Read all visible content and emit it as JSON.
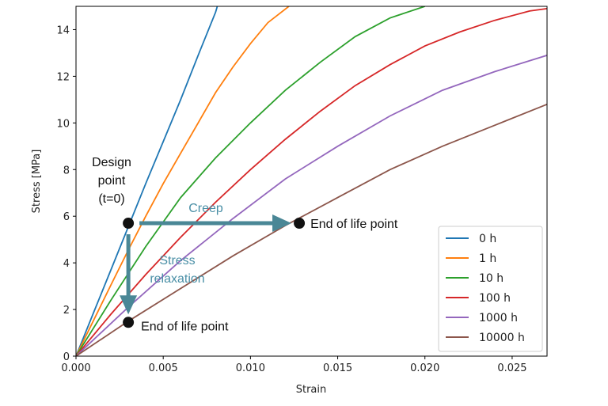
{
  "chart_data": {
    "type": "line",
    "xlabel": "Strain",
    "ylabel": "Stress [MPa]",
    "xlim": [
      0,
      0.027
    ],
    "ylim": [
      0,
      15
    ],
    "x_ticks": [
      "0.000",
      "0.005",
      "0.010",
      "0.015",
      "0.020",
      "0.025"
    ],
    "y_ticks": [
      "0",
      "2",
      "4",
      "6",
      "8",
      "10",
      "12",
      "14"
    ],
    "grid": false,
    "legend_position": "lower-right",
    "series": [
      {
        "name": "0 h",
        "color": "#1f77b4",
        "x": [
          0,
          0.001,
          0.002,
          0.003,
          0.004,
          0.005,
          0.006,
          0.007,
          0.008,
          0.0081
        ],
        "y": [
          0,
          1.85,
          3.7,
          5.55,
          7.4,
          9.2,
          11.0,
          12.9,
          14.75,
          15
        ]
      },
      {
        "name": "1 h",
        "color": "#ff7f0e",
        "x": [
          0,
          0.001,
          0.002,
          0.003,
          0.004,
          0.005,
          0.006,
          0.007,
          0.008,
          0.009,
          0.01,
          0.011,
          0.0122
        ],
        "y": [
          0,
          1.52,
          3.05,
          4.55,
          6.0,
          7.4,
          8.7,
          10.0,
          11.3,
          12.4,
          13.4,
          14.3,
          15
        ]
      },
      {
        "name": "10 h",
        "color": "#2ca02c",
        "x": [
          0,
          0.002,
          0.004,
          0.006,
          0.008,
          0.01,
          0.012,
          0.014,
          0.016,
          0.018,
          0.02
        ],
        "y": [
          0,
          2.4,
          4.7,
          6.8,
          8.5,
          10.0,
          11.4,
          12.6,
          13.7,
          14.5,
          15
        ]
      },
      {
        "name": "100 h",
        "color": "#d62728",
        "x": [
          0,
          0.002,
          0.004,
          0.006,
          0.008,
          0.01,
          0.012,
          0.014,
          0.016,
          0.018,
          0.02,
          0.022,
          0.024,
          0.026,
          0.027
        ],
        "y": [
          0,
          1.8,
          3.5,
          5.1,
          6.6,
          8.0,
          9.3,
          10.5,
          11.6,
          12.5,
          13.3,
          13.9,
          14.4,
          14.8,
          14.9
        ]
      },
      {
        "name": "1000 h",
        "color": "#9467bd",
        "x": [
          0,
          0.003,
          0.006,
          0.009,
          0.012,
          0.015,
          0.018,
          0.021,
          0.024,
          0.027
        ],
        "y": [
          0,
          2.1,
          4.1,
          5.9,
          7.6,
          9.0,
          10.3,
          11.4,
          12.2,
          12.9
        ]
      },
      {
        "name": "10000 h",
        "color": "#8c564b",
        "x": [
          0,
          0.003,
          0.006,
          0.009,
          0.012,
          0.015,
          0.018,
          0.021,
          0.024,
          0.027
        ],
        "y": [
          0,
          1.5,
          2.9,
          4.3,
          5.6,
          6.8,
          8.0,
          9.0,
          9.9,
          10.8
        ]
      }
    ],
    "annotations": {
      "design_point": {
        "lines": [
          "Design",
          "point",
          "(t=0)"
        ],
        "x": 0.003,
        "y": 5.7
      },
      "creep": {
        "label": "Creep",
        "end_x": 0.0128,
        "end_y": 5.7,
        "end_label": "End of life point"
      },
      "relaxation": {
        "lines": [
          "Stress",
          "relaxation"
        ],
        "end_x": 0.003,
        "end_y": 1.45,
        "end_label": "End of life point"
      },
      "arrow_color": "#4a8796"
    }
  }
}
